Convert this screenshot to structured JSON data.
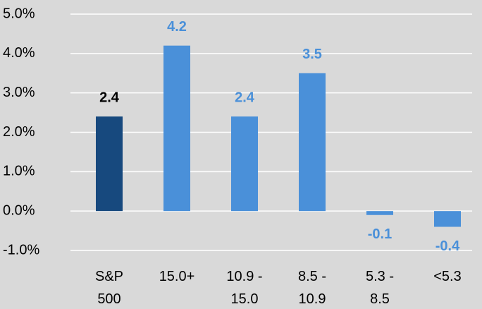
{
  "chart_data": {
    "type": "bar",
    "categories": [
      "S&P 500",
      "15.0+",
      "10.9 - 15.0",
      "8.5 - 10.9",
      "5.3 - 8.5",
      "<5.3"
    ],
    "values": [
      2.4,
      4.2,
      2.4,
      3.5,
      -0.1,
      -0.4
    ],
    "colors": [
      "#17497e",
      "#4a90d9",
      "#4a90d9",
      "#4a90d9",
      "#4a90d9",
      "#4a90d9"
    ],
    "label_colors": [
      "#000000",
      "#4a90d9",
      "#4a90d9",
      "#4a90d9",
      "#4a90d9",
      "#4a90d9"
    ],
    "ylim": [
      -1,
      5
    ],
    "yticks": [
      {
        "value": -1,
        "label": "-1.0%"
      },
      {
        "value": 0,
        "label": "0.0%"
      },
      {
        "value": 1,
        "label": "1.0%"
      },
      {
        "value": 2,
        "label": "2.0%"
      },
      {
        "value": 3,
        "label": "3.0%"
      },
      {
        "value": 4,
        "label": "4.0%"
      },
      {
        "value": 5,
        "label": "5.0%"
      }
    ],
    "grid": true
  }
}
